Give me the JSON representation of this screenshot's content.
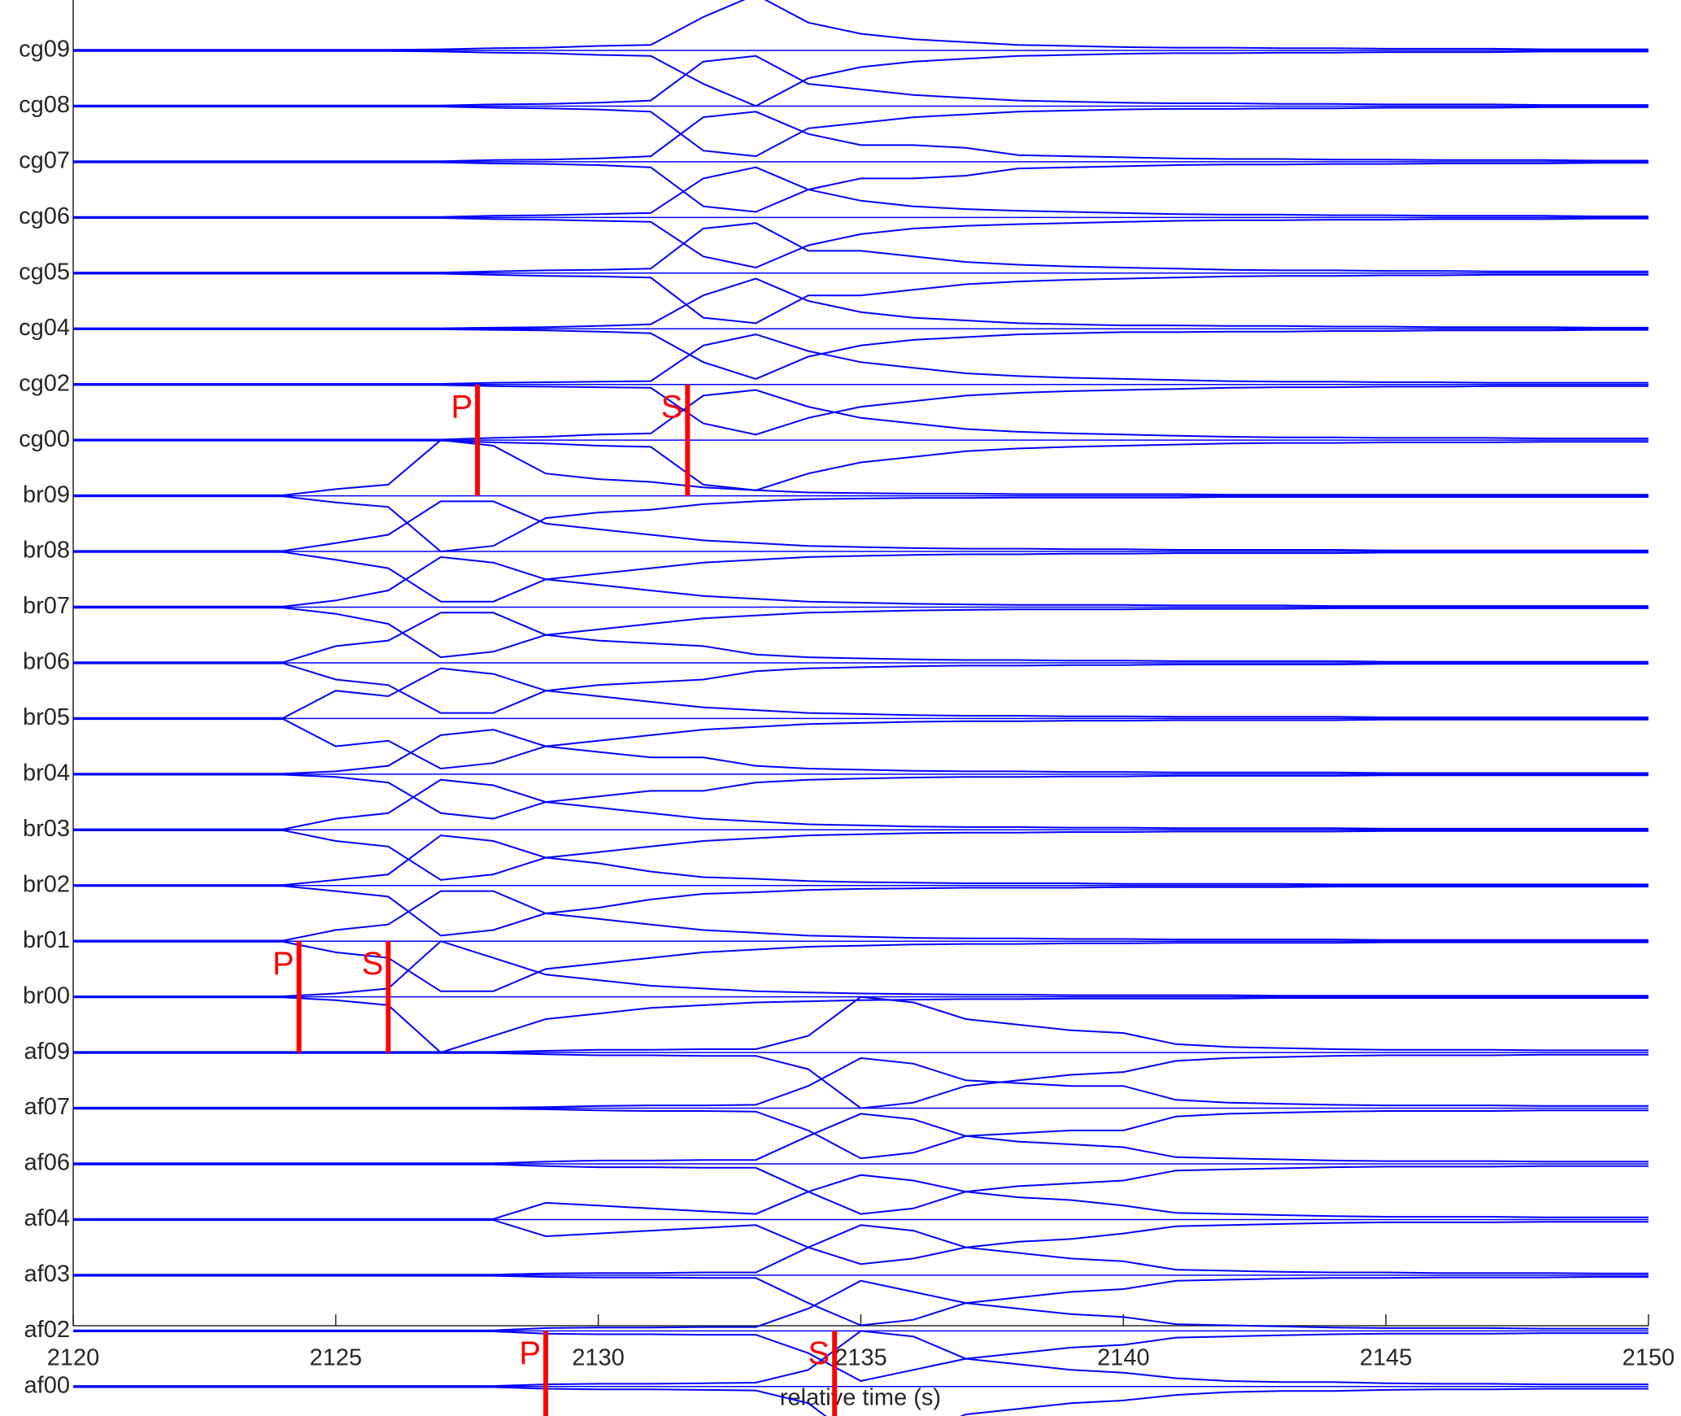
{
  "chart_data": {
    "type": "seismogram",
    "xlabel": "relative time (s)",
    "xlim": [
      2120,
      2150
    ],
    "xticks": [
      2120,
      2125,
      2130,
      2135,
      2140,
      2145,
      2150
    ],
    "color": "#0000ff",
    "pick_color": "#ff0000",
    "x": [
      2120,
      2121,
      2122,
      2123,
      2124,
      2125,
      2126,
      2127,
      2128,
      2129,
      2130,
      2131,
      2132,
      2133,
      2134,
      2135,
      2136,
      2137,
      2138,
      2139,
      2140,
      2141,
      2142,
      2143,
      2144,
      2145,
      2146,
      2147,
      2148,
      2149,
      2150
    ],
    "series": [
      {
        "name": "cg09",
        "values": [
          0.01,
          0.01,
          0.01,
          0.01,
          0.01,
          0.01,
          0.01,
          0.02,
          0.04,
          0.05,
          0.08,
          0.1,
          0.6,
          1.0,
          0.5,
          0.3,
          0.2,
          0.15,
          0.1,
          0.08,
          0.06,
          0.05,
          0.05,
          0.04,
          0.04,
          0.03,
          0.03,
          0.03,
          0.02,
          0.02,
          0.02
        ]
      },
      {
        "name": "cg08",
        "values": [
          0.01,
          0.01,
          0.01,
          0.01,
          0.01,
          0.01,
          0.01,
          0.01,
          0.03,
          0.04,
          0.06,
          0.1,
          0.8,
          0.9,
          0.4,
          0.3,
          0.2,
          0.15,
          0.1,
          0.08,
          0.06,
          0.05,
          0.05,
          0.04,
          0.04,
          0.03,
          0.03,
          0.03,
          0.02,
          0.02,
          0.02
        ]
      },
      {
        "name": "cg07",
        "values": [
          0.01,
          0.01,
          0.01,
          0.01,
          0.01,
          0.01,
          0.01,
          0.01,
          0.03,
          0.04,
          0.06,
          0.1,
          0.8,
          0.9,
          0.5,
          0.3,
          0.3,
          0.25,
          0.12,
          0.1,
          0.08,
          0.06,
          0.05,
          0.05,
          0.04,
          0.04,
          0.03,
          0.03,
          0.03,
          0.02,
          0.02
        ]
      },
      {
        "name": "cg06",
        "values": [
          0.01,
          0.01,
          0.01,
          0.01,
          0.01,
          0.01,
          0.01,
          0.01,
          0.03,
          0.04,
          0.06,
          0.08,
          0.7,
          0.9,
          0.5,
          0.3,
          0.2,
          0.15,
          0.12,
          0.1,
          0.08,
          0.06,
          0.05,
          0.05,
          0.04,
          0.04,
          0.03,
          0.03,
          0.03,
          0.02,
          0.02
        ]
      },
      {
        "name": "cg05",
        "values": [
          0.01,
          0.01,
          0.01,
          0.01,
          0.01,
          0.01,
          0.01,
          0.01,
          0.03,
          0.05,
          0.06,
          0.08,
          0.8,
          0.9,
          0.4,
          0.4,
          0.3,
          0.2,
          0.15,
          0.12,
          0.1,
          0.08,
          0.06,
          0.05,
          0.05,
          0.04,
          0.04,
          0.03,
          0.03,
          0.03,
          0.03
        ]
      },
      {
        "name": "cg04",
        "values": [
          0.01,
          0.01,
          0.01,
          0.01,
          0.01,
          0.01,
          0.01,
          0.01,
          0.02,
          0.03,
          0.05,
          0.08,
          0.6,
          0.9,
          0.5,
          0.3,
          0.2,
          0.15,
          0.1,
          0.08,
          0.06,
          0.06,
          0.05,
          0.05,
          0.04,
          0.04,
          0.03,
          0.03,
          0.03,
          0.02,
          0.02
        ]
      },
      {
        "name": "cg02",
        "values": [
          0.01,
          0.01,
          0.01,
          0.01,
          0.01,
          0.01,
          0.01,
          0.01,
          0.03,
          0.04,
          0.05,
          0.06,
          0.7,
          0.9,
          0.6,
          0.4,
          0.3,
          0.2,
          0.15,
          0.12,
          0.1,
          0.08,
          0.06,
          0.05,
          0.05,
          0.04,
          0.04,
          0.03,
          0.03,
          0.03,
          0.03
        ]
      },
      {
        "name": "cg00",
        "values": [
          0.01,
          0.01,
          0.01,
          0.01,
          0.01,
          0.01,
          0.01,
          0.01,
          0.04,
          0.06,
          0.1,
          0.12,
          0.8,
          0.9,
          0.6,
          0.4,
          0.3,
          0.2,
          0.15,
          0.12,
          0.1,
          0.08,
          0.06,
          0.05,
          0.05,
          0.04,
          0.04,
          0.04,
          0.03,
          0.03,
          0.03
        ]
      },
      {
        "name": "br09",
        "values": [
          0.01,
          0.01,
          0.01,
          0.01,
          0.01,
          0.12,
          0.2,
          1.0,
          0.9,
          0.4,
          0.3,
          0.25,
          0.15,
          0.1,
          0.06,
          0.05,
          0.04,
          0.04,
          0.03,
          0.03,
          0.03,
          0.03,
          0.02,
          0.02,
          0.02,
          0.02,
          0.02,
          0.02,
          0.02,
          0.02,
          0.02
        ]
      },
      {
        "name": "br08",
        "values": [
          0.01,
          0.01,
          0.01,
          0.01,
          0.01,
          0.15,
          0.3,
          0.9,
          0.9,
          0.5,
          0.4,
          0.3,
          0.2,
          0.15,
          0.1,
          0.08,
          0.06,
          0.05,
          0.05,
          0.04,
          0.04,
          0.03,
          0.03,
          0.03,
          0.03,
          0.02,
          0.02,
          0.02,
          0.02,
          0.02,
          0.02
        ]
      },
      {
        "name": "br07",
        "values": [
          0.01,
          0.01,
          0.01,
          0.01,
          0.01,
          0.12,
          0.3,
          0.9,
          0.8,
          0.5,
          0.4,
          0.3,
          0.2,
          0.15,
          0.1,
          0.08,
          0.06,
          0.05,
          0.04,
          0.04,
          0.04,
          0.03,
          0.03,
          0.03,
          0.02,
          0.02,
          0.02,
          0.02,
          0.02,
          0.02,
          0.02
        ]
      },
      {
        "name": "br06",
        "values": [
          0.01,
          0.01,
          0.01,
          0.01,
          0.01,
          0.3,
          0.4,
          0.9,
          0.9,
          0.5,
          0.4,
          0.35,
          0.3,
          0.15,
          0.1,
          0.08,
          0.06,
          0.05,
          0.05,
          0.04,
          0.04,
          0.03,
          0.03,
          0.03,
          0.03,
          0.02,
          0.02,
          0.02,
          0.02,
          0.02,
          0.02
        ]
      },
      {
        "name": "br05",
        "values": [
          0.01,
          0.01,
          0.01,
          0.01,
          0.01,
          0.5,
          0.4,
          0.9,
          0.8,
          0.5,
          0.4,
          0.3,
          0.2,
          0.15,
          0.1,
          0.08,
          0.06,
          0.05,
          0.05,
          0.04,
          0.04,
          0.03,
          0.03,
          0.03,
          0.03,
          0.02,
          0.02,
          0.02,
          0.02,
          0.02,
          0.02
        ]
      },
      {
        "name": "br04",
        "values": [
          0.01,
          0.01,
          0.01,
          0.01,
          0.01,
          0.05,
          0.15,
          0.7,
          0.8,
          0.5,
          0.4,
          0.3,
          0.3,
          0.15,
          0.1,
          0.08,
          0.06,
          0.05,
          0.05,
          0.04,
          0.04,
          0.03,
          0.03,
          0.03,
          0.03,
          0.02,
          0.02,
          0.02,
          0.02,
          0.02,
          0.02
        ]
      },
      {
        "name": "br03",
        "values": [
          0.01,
          0.01,
          0.01,
          0.01,
          0.01,
          0.2,
          0.3,
          0.9,
          0.8,
          0.5,
          0.4,
          0.3,
          0.2,
          0.15,
          0.1,
          0.08,
          0.06,
          0.05,
          0.05,
          0.04,
          0.04,
          0.03,
          0.03,
          0.03,
          0.03,
          0.02,
          0.02,
          0.02,
          0.02,
          0.02,
          0.02
        ]
      },
      {
        "name": "br02",
        "values": [
          0.01,
          0.01,
          0.01,
          0.01,
          0.01,
          0.1,
          0.2,
          0.9,
          0.8,
          0.5,
          0.4,
          0.25,
          0.15,
          0.12,
          0.08,
          0.06,
          0.05,
          0.04,
          0.04,
          0.04,
          0.03,
          0.03,
          0.03,
          0.03,
          0.02,
          0.02,
          0.02,
          0.02,
          0.02,
          0.02,
          0.02
        ]
      },
      {
        "name": "br01",
        "values": [
          0.01,
          0.01,
          0.01,
          0.01,
          0.01,
          0.2,
          0.3,
          0.9,
          0.9,
          0.5,
          0.4,
          0.3,
          0.2,
          0.15,
          0.1,
          0.08,
          0.06,
          0.05,
          0.05,
          0.04,
          0.04,
          0.03,
          0.03,
          0.03,
          0.03,
          0.02,
          0.02,
          0.02,
          0.02,
          0.02,
          0.02
        ]
      },
      {
        "name": "br00",
        "values": [
          0.01,
          0.01,
          0.01,
          0.01,
          0.01,
          0.06,
          0.15,
          1.0,
          0.7,
          0.4,
          0.3,
          0.2,
          0.15,
          0.1,
          0.08,
          0.06,
          0.05,
          0.04,
          0.04,
          0.03,
          0.03,
          0.03,
          0.03,
          0.02,
          0.02,
          0.02,
          0.02,
          0.02,
          0.02,
          0.02,
          0.02
        ]
      },
      {
        "name": "af09",
        "values": [
          0.01,
          0.01,
          0.01,
          0.01,
          0.01,
          0.01,
          0.01,
          0.01,
          0.01,
          0.03,
          0.05,
          0.05,
          0.06,
          0.06,
          0.3,
          1.0,
          0.9,
          0.6,
          0.5,
          0.4,
          0.35,
          0.15,
          0.1,
          0.08,
          0.06,
          0.05,
          0.05,
          0.05,
          0.04,
          0.04,
          0.04
        ]
      },
      {
        "name": "af07",
        "values": [
          0.01,
          0.01,
          0.01,
          0.01,
          0.01,
          0.01,
          0.01,
          0.01,
          0.01,
          0.02,
          0.04,
          0.05,
          0.05,
          0.06,
          0.4,
          0.9,
          0.8,
          0.5,
          0.45,
          0.4,
          0.4,
          0.15,
          0.1,
          0.08,
          0.06,
          0.05,
          0.05,
          0.05,
          0.04,
          0.04,
          0.04
        ]
      },
      {
        "name": "af06",
        "values": [
          0.01,
          0.01,
          0.01,
          0.01,
          0.01,
          0.01,
          0.01,
          0.01,
          0.01,
          0.04,
          0.06,
          0.06,
          0.07,
          0.07,
          0.5,
          0.9,
          0.8,
          0.5,
          0.4,
          0.35,
          0.3,
          0.12,
          0.1,
          0.08,
          0.06,
          0.05,
          0.05,
          0.05,
          0.04,
          0.04,
          0.04
        ]
      },
      {
        "name": "af04",
        "values": [
          0.01,
          0.01,
          0.01,
          0.01,
          0.01,
          0.01,
          0.01,
          0.01,
          0.01,
          0.3,
          0.25,
          0.2,
          0.15,
          0.1,
          0.5,
          0.8,
          0.7,
          0.5,
          0.4,
          0.35,
          0.25,
          0.12,
          0.1,
          0.08,
          0.06,
          0.05,
          0.05,
          0.05,
          0.04,
          0.04,
          0.04
        ]
      },
      {
        "name": "af03",
        "values": [
          0.01,
          0.01,
          0.01,
          0.01,
          0.01,
          0.01,
          0.01,
          0.01,
          0.01,
          0.03,
          0.04,
          0.04,
          0.05,
          0.05,
          0.5,
          0.9,
          0.8,
          0.5,
          0.4,
          0.3,
          0.25,
          0.1,
          0.08,
          0.06,
          0.05,
          0.05,
          0.04,
          0.04,
          0.04,
          0.03,
          0.03
        ]
      },
      {
        "name": "af02",
        "values": [
          0.01,
          0.01,
          0.01,
          0.01,
          0.01,
          0.01,
          0.01,
          0.01,
          0.01,
          0.05,
          0.06,
          0.06,
          0.07,
          0.07,
          0.4,
          0.9,
          0.7,
          0.5,
          0.4,
          0.3,
          0.25,
          0.12,
          0.1,
          0.08,
          0.06,
          0.05,
          0.05,
          0.05,
          0.04,
          0.04,
          0.04
        ]
      },
      {
        "name": "af00",
        "values": [
          0.01,
          0.01,
          0.01,
          0.01,
          0.01,
          0.01,
          0.01,
          0.01,
          0.01,
          0.04,
          0.05,
          0.05,
          0.06,
          0.07,
          0.3,
          1.0,
          0.9,
          0.5,
          0.4,
          0.3,
          0.25,
          0.15,
          0.1,
          0.08,
          0.08,
          0.06,
          0.05,
          0.05,
          0.04,
          0.04,
          0.04
        ]
      }
    ],
    "picks": [
      {
        "label": "P",
        "time": 2127.7,
        "station": "cg00"
      },
      {
        "label": "S",
        "time": 2131.7,
        "station": "cg00"
      },
      {
        "label": "P",
        "time": 2124.3,
        "station": "br00"
      },
      {
        "label": "S",
        "time": 2126.0,
        "station": "br00"
      },
      {
        "label": "P",
        "time": 2129.0,
        "station": "af00"
      },
      {
        "label": "S",
        "time": 2134.5,
        "station": "af00"
      }
    ]
  }
}
